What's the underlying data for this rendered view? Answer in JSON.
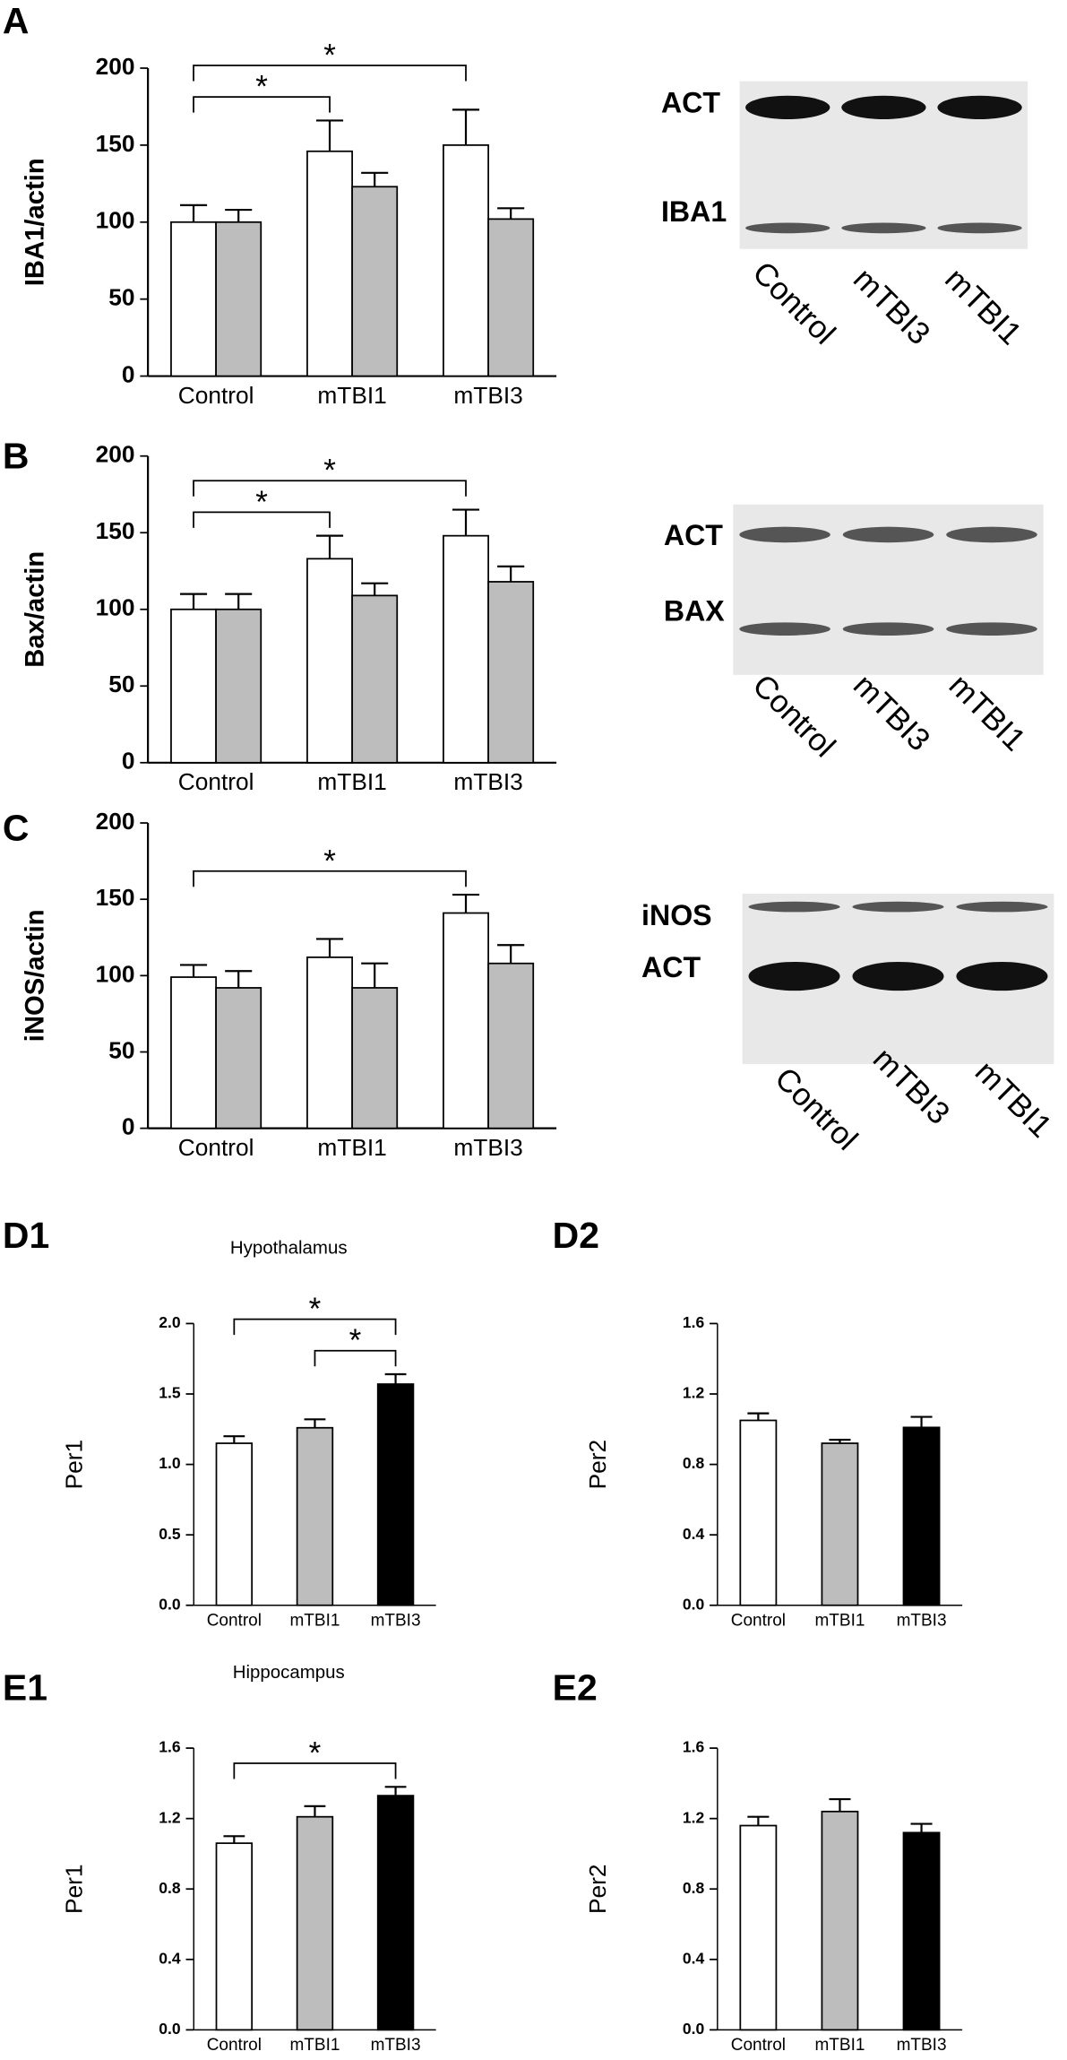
{
  "chart_data": [
    {
      "type": "bar",
      "panel": "A",
      "ylabel": "IBA1/actin",
      "categories": [
        "Control",
        "mTBI1",
        "mTBI3"
      ],
      "series": [
        {
          "color": "#ffffff",
          "values": [
            100,
            146,
            150
          ],
          "errors": [
            11,
            20,
            23
          ]
        },
        {
          "color": "#bdbdbd",
          "values": [
            100,
            123,
            102
          ],
          "errors": [
            8,
            9,
            7
          ]
        }
      ],
      "ylim": [
        0,
        200
      ],
      "yticks": [
        0,
        50,
        100,
        150,
        200
      ],
      "annotations": [
        {
          "text": "*",
          "from": "Control",
          "to": "mTBI1"
        },
        {
          "text": "*",
          "from": "Control",
          "to": "mTBI3"
        }
      ]
    },
    {
      "type": "bar",
      "panel": "B",
      "ylabel": "Bax/actin",
      "categories": [
        "Control",
        "mTBI1",
        "mTBI3"
      ],
      "series": [
        {
          "color": "#ffffff",
          "values": [
            100,
            133,
            148
          ],
          "errors": [
            10,
            15,
            17
          ]
        },
        {
          "color": "#bdbdbd",
          "values": [
            100,
            109,
            118
          ],
          "errors": [
            10,
            8,
            10
          ]
        }
      ],
      "ylim": [
        0,
        200
      ],
      "yticks": [
        0,
        50,
        100,
        150,
        200
      ],
      "annotations": [
        {
          "text": "*",
          "from": "Control",
          "to": "mTBI1"
        },
        {
          "text": "*",
          "from": "Control",
          "to": "mTBI3"
        }
      ]
    },
    {
      "type": "bar",
      "panel": "C",
      "ylabel": "iNOS/actin",
      "categories": [
        "Control",
        "mTBI1",
        "mTBI3"
      ],
      "series": [
        {
          "color": "#ffffff",
          "values": [
            99,
            112,
            141
          ],
          "errors": [
            8,
            12,
            12
          ]
        },
        {
          "color": "#bdbdbd",
          "values": [
            92,
            92,
            108
          ],
          "errors": [
            11,
            16,
            12
          ]
        }
      ],
      "ylim": [
        0,
        200
      ],
      "yticks": [
        0,
        50,
        100,
        150,
        200
      ],
      "annotations": [
        {
          "text": "*",
          "from": "Control",
          "to": "mTBI3"
        }
      ]
    },
    {
      "type": "bar",
      "panel": "D1",
      "title": "Hypothalamus",
      "ylabel": "Per1",
      "categories": [
        "Control",
        "mTBI1",
        "mTBI3"
      ],
      "series": [
        {
          "colors": [
            "#ffffff",
            "#bdbdbd",
            "#000000"
          ],
          "values": [
            1.15,
            1.26,
            1.57
          ],
          "errors": [
            0.05,
            0.06,
            0.07
          ]
        }
      ],
      "ylim": [
        0,
        2.0
      ],
      "yticks": [
        {
          "value": 0,
          "label": "0.0"
        },
        {
          "value": 0.5,
          "label": "0.5"
        },
        {
          "value": 1,
          "label": "1.0"
        },
        {
          "value": 1.5,
          "label": "1.5"
        },
        {
          "value": 2,
          "label": "2.0"
        }
      ],
      "annotations": [
        {
          "text": "*",
          "from": "mTBI1",
          "to": "mTBI3"
        },
        {
          "text": "*",
          "from": "Control",
          "to": "mTBI3"
        }
      ]
    },
    {
      "type": "bar",
      "panel": "D2",
      "ylabel": "Per2",
      "categories": [
        "Control",
        "mTBI1",
        "mTBI3"
      ],
      "series": [
        {
          "colors": [
            "#ffffff",
            "#bdbdbd",
            "#000000"
          ],
          "values": [
            1.05,
            0.92,
            1.01
          ],
          "errors": [
            0.04,
            0.02,
            0.06
          ]
        }
      ],
      "ylim": [
        0,
        1.6
      ],
      "yticks": [
        {
          "value": 0,
          "label": "0.0"
        },
        {
          "value": 0.4,
          "label": "0.4"
        },
        {
          "value": 0.8,
          "label": "0.8"
        },
        {
          "value": 1.2,
          "label": "1.2"
        },
        {
          "value": 1.6,
          "label": "1.6"
        }
      ],
      "annotations": []
    },
    {
      "type": "bar",
      "panel": "E1",
      "title": "Hippocampus",
      "ylabel": "Per1",
      "categories": [
        "Control",
        "mTBI1",
        "mTBI3"
      ],
      "series": [
        {
          "colors": [
            "#ffffff",
            "#bdbdbd",
            "#000000"
          ],
          "values": [
            1.06,
            1.21,
            1.33
          ],
          "errors": [
            0.04,
            0.06,
            0.05
          ]
        }
      ],
      "ylim": [
        0,
        1.6
      ],
      "yticks": [
        {
          "value": 0,
          "label": "0.0"
        },
        {
          "value": 0.4,
          "label": "0.4"
        },
        {
          "value": 0.8,
          "label": "0.8"
        },
        {
          "value": 1.2,
          "label": "1.2"
        },
        {
          "value": 1.6,
          "label": "1.6"
        }
      ],
      "annotations": [
        {
          "text": "*",
          "from": "Control",
          "to": "mTBI3"
        }
      ]
    },
    {
      "type": "bar",
      "panel": "E2",
      "ylabel": "Per2",
      "categories": [
        "Control",
        "mTBI1",
        "mTBI3"
      ],
      "series": [
        {
          "colors": [
            "#ffffff",
            "#bdbdbd",
            "#000000"
          ],
          "values": [
            1.16,
            1.24,
            1.12
          ],
          "errors": [
            0.05,
            0.07,
            0.05
          ]
        }
      ],
      "ylim": [
        0,
        1.6
      ],
      "yticks": [
        {
          "value": 0,
          "label": "0.0"
        },
        {
          "value": 0.4,
          "label": "0.4"
        },
        {
          "value": 0.8,
          "label": "0.8"
        },
        {
          "value": 1.2,
          "label": "1.2"
        },
        {
          "value": 1.6,
          "label": "1.6"
        }
      ],
      "annotations": []
    }
  ],
  "blots": [
    {
      "rows": [
        "ACT",
        "IBA1"
      ],
      "lanes": [
        "Control",
        "mTBI3",
        "mTBI1"
      ]
    },
    {
      "rows": [
        "ACT",
        "BAX"
      ],
      "lanes": [
        "Control",
        "mTBI3",
        "mTBI1"
      ]
    },
    {
      "rows": [
        "iNOS",
        "ACT"
      ],
      "lanes": [
        "Control",
        "mTBI3",
        "mTBI1"
      ]
    }
  ]
}
